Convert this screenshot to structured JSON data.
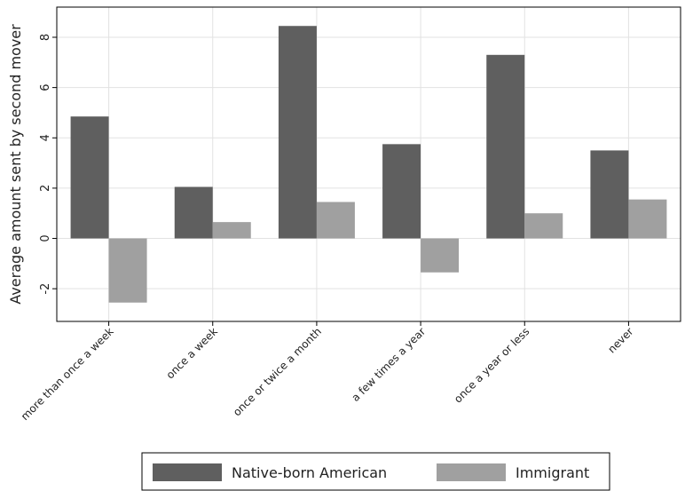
{
  "chart_data": {
    "type": "bar",
    "categories": [
      "more than once a week",
      "once a week",
      "once or twice a month",
      "a few times a year",
      "once a year or less",
      "never"
    ],
    "series": [
      {
        "name": "Native-born American",
        "values": [
          4.85,
          2.05,
          8.45,
          3.75,
          7.3,
          3.5
        ],
        "color": "#5f5f5f"
      },
      {
        "name": "Immigrant",
        "values": [
          -2.55,
          0.65,
          1.45,
          -1.35,
          1.0,
          1.55
        ],
        "color": "#a0a0a0"
      }
    ],
    "xlabel": "",
    "ylabel": "Average amount sent by second mover",
    "ylim": [
      -3.3,
      9.2
    ],
    "yticks": [
      -2,
      0,
      2,
      4,
      6,
      8
    ],
    "grid": true,
    "legend_position": "bottom"
  }
}
